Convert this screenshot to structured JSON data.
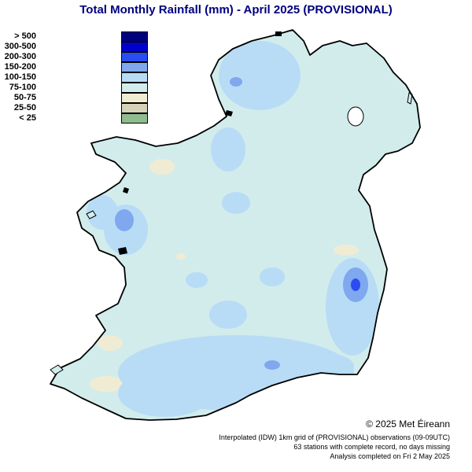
{
  "title": "Total Monthly Rainfall (mm) - April 2025  (PROVISIONAL)",
  "legend": [
    {
      "label": "> 500",
      "color": "#000080"
    },
    {
      "label": "300-500",
      "color": "#0000cd"
    },
    {
      "label": "200-300",
      "color": "#2a4cf0"
    },
    {
      "label": "150-200",
      "color": "#7fa8ee"
    },
    {
      "label": "100-150",
      "color": "#b8dcf6"
    },
    {
      "label": "75-100",
      "color": "#d2ecec"
    },
    {
      "label": "50-75",
      "color": "#f0ecd4"
    },
    {
      "label": "25-50",
      "color": "#d4d2b8"
    },
    {
      "label": "< 25",
      "color": "#90bc90"
    }
  ],
  "copyright": "© 2025 Met Éireann",
  "notes": [
    "Interpolated (IDW) 1km grid of  (PROVISIONAL) observations (09-09UTC)",
    "63 stations with complete record, no days missing",
    "Analysis completed on Fri 2 May 2025"
  ]
}
